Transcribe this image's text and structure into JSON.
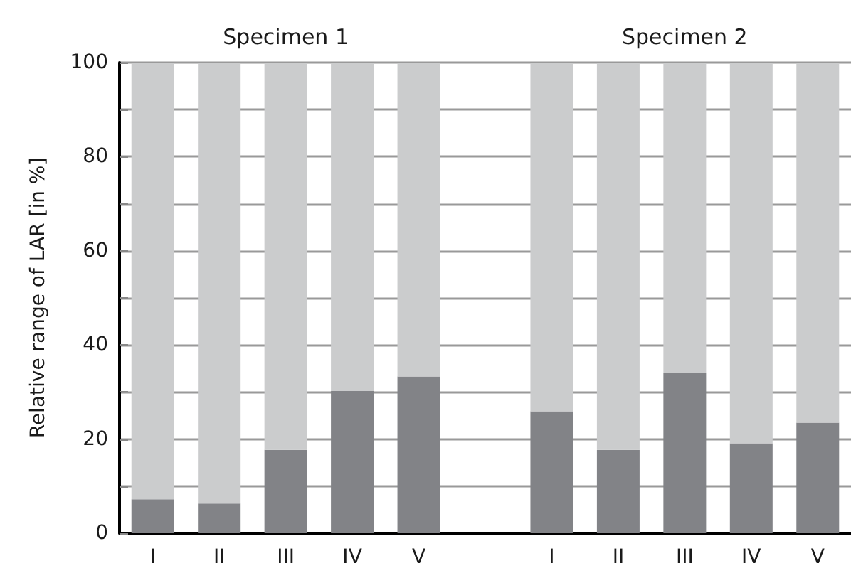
{
  "chart_data": {
    "type": "bar",
    "stacked": true,
    "ylabel": "Relative range of LAR [in %]",
    "categories": [
      "I",
      "II",
      "III",
      "IV",
      "V",
      null,
      "I",
      "II",
      "III",
      "IV",
      "V"
    ],
    "series": [
      {
        "color": "#828387",
        "values": [
          7.2,
          6.3,
          17.7,
          30.2,
          33.3,
          null,
          25.9,
          17.7,
          34.1,
          19.1,
          23.5
        ]
      },
      {
        "color": "#cbcccd",
        "values": [
          92.8,
          93.7,
          82.3,
          69.8,
          66.7,
          null,
          74.1,
          82.3,
          65.9,
          80.9,
          76.5
        ]
      }
    ],
    "ylim": [
      0,
      100
    ],
    "yticks": [
      0,
      {
        "value": 10,
        "label": null
      },
      20,
      {
        "value": 30,
        "label": null
      },
      40,
      {
        "value": 50,
        "label": null
      },
      60,
      {
        "value": 70,
        "label": null
      },
      80,
      {
        "value": 90,
        "label": null
      },
      100
    ],
    "grid": "y",
    "annotations": [
      "Specimen 1",
      "Specimen 2"
    ]
  }
}
